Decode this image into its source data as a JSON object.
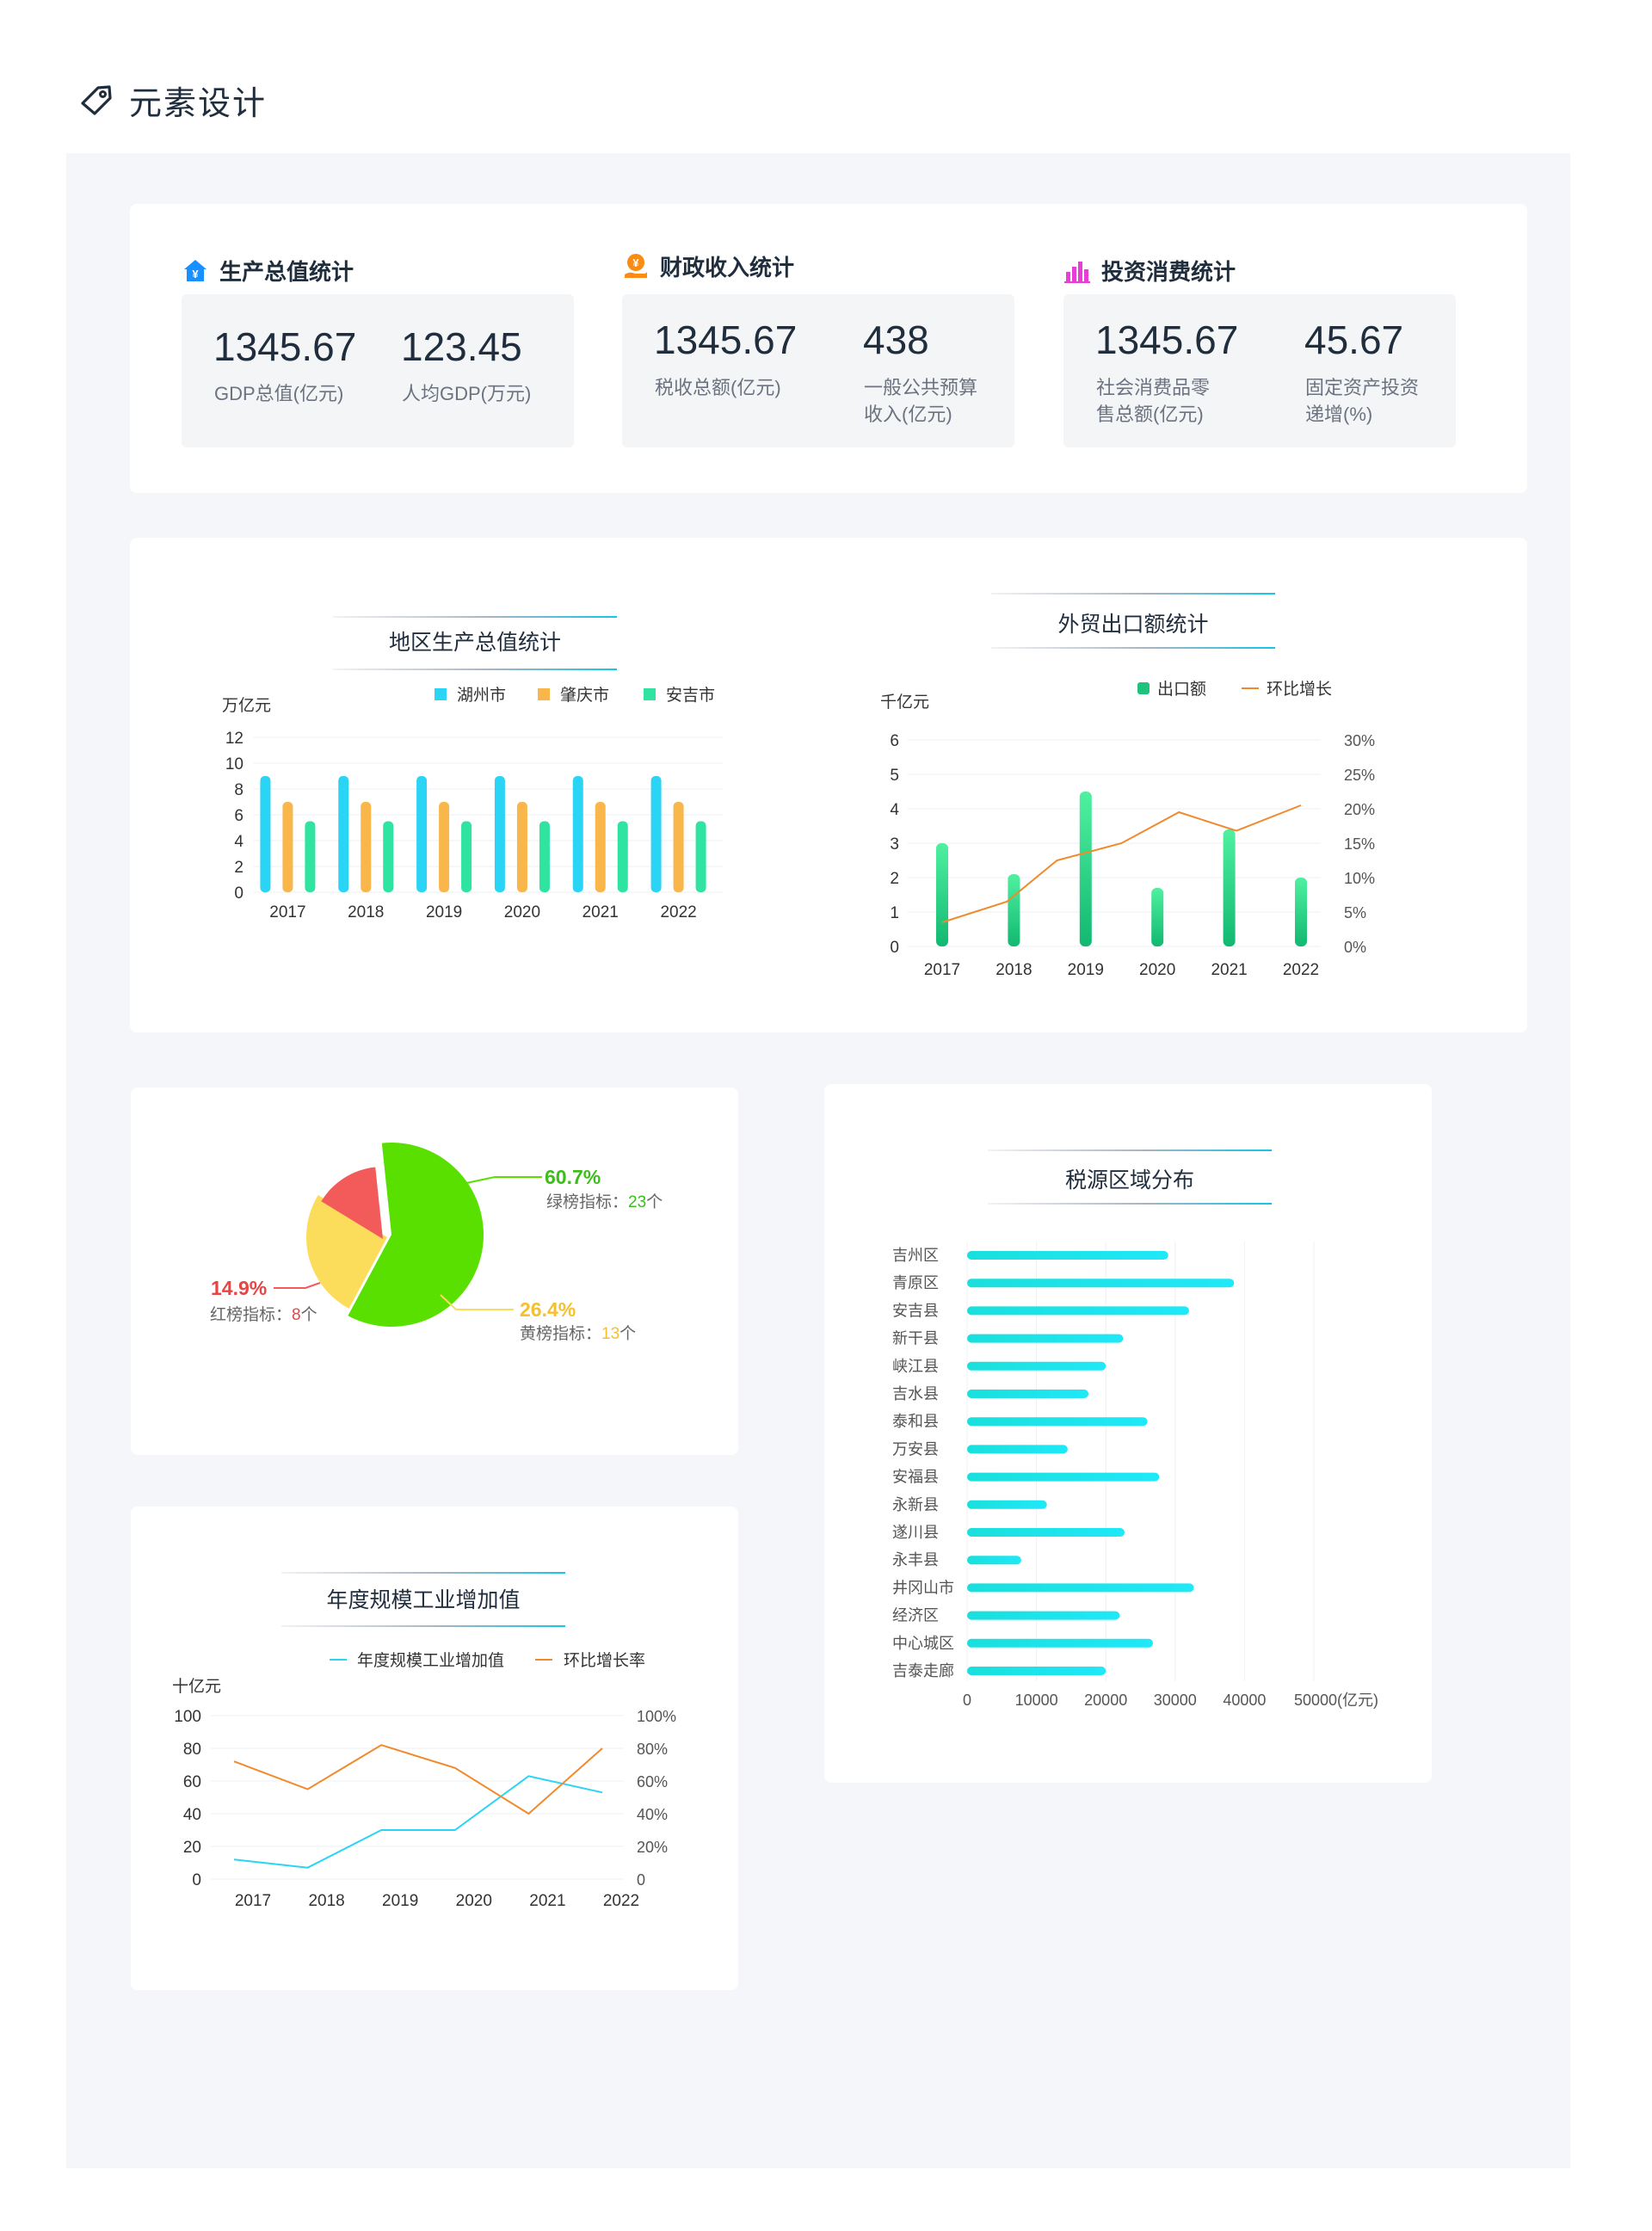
{
  "page": {
    "title": "元素设计",
    "title_icon": "tag-icon"
  },
  "stats": [
    {
      "title": "生产总值统计",
      "icon": "house-yen-icon",
      "icon_color": "#1890ff",
      "items": [
        {
          "value": "1345.67",
          "label": "GDP总值(亿元)"
        },
        {
          "value": "123.45",
          "label": "人均GDP(万元)"
        }
      ]
    },
    {
      "title": "财政收入统计",
      "icon": "yen-coin-hand-icon",
      "icon_color": "#fa8c16",
      "items": [
        {
          "value": "1345.67",
          "label": "税收总额(亿元)"
        },
        {
          "value": "438",
          "label": "一般公共预算收入(亿元)",
          "label_lines": [
            "一般公共预算",
            "收入(亿元)"
          ]
        }
      ]
    },
    {
      "title": "投资消费统计",
      "icon": "bar-chart-icon",
      "icon_color": "#e83ed8",
      "items": [
        {
          "value": "1345.67",
          "label": "社会消费品零售总额(亿元)",
          "label_lines": [
            "社会消费品零",
            "售总额(亿元)"
          ]
        },
        {
          "value": "45.67",
          "label": "固定资产投资递增(%)",
          "label_lines": [
            "固定资产投资",
            "递增(%)"
          ]
        }
      ]
    }
  ],
  "chart_data": [
    {
      "id": "regional-gdp",
      "type": "bar",
      "title": "地区生产总值统计",
      "ylabel": "万亿元",
      "ylim": [
        0,
        12
      ],
      "yticks": [
        0,
        2,
        4,
        6,
        8,
        10,
        12
      ],
      "categories": [
        "2017",
        "2018",
        "2019",
        "2020",
        "2021",
        "2022"
      ],
      "series": [
        {
          "name": "湖州市",
          "color": "#2ad4f4",
          "values": [
            9,
            9,
            9,
            9,
            9,
            9
          ]
        },
        {
          "name": "肇庆市",
          "color": "#f9b64a",
          "values": [
            7,
            7,
            7,
            7,
            7,
            7
          ]
        },
        {
          "name": "安吉市",
          "color": "#2ee4a0",
          "values": [
            5.5,
            5.5,
            5.5,
            5.5,
            5.5,
            5.5
          ]
        }
      ],
      "legend": "top",
      "grid": true
    },
    {
      "id": "foreign-trade",
      "type": "bar+line",
      "title": "外贸出口额统计",
      "ylabel": "千亿元",
      "ylim": [
        0,
        6
      ],
      "yticks": [
        0,
        1,
        2,
        3,
        4,
        5,
        6
      ],
      "y2lim": [
        0,
        30
      ],
      "y2ticks": [
        "0%",
        "5%",
        "10%",
        "15%",
        "20%",
        "25%",
        "30%"
      ],
      "categories": [
        "2017",
        "2018",
        "2019",
        "2020",
        "2021",
        "2022"
      ],
      "series": [
        {
          "name": "出口额",
          "type": "bar",
          "color": "#1fc27a",
          "values": [
            3,
            2.1,
            4.5,
            1.7,
            3.4,
            2
          ]
        },
        {
          "name": "环比增长",
          "type": "line",
          "axis": "right",
          "color": "#f08a2c",
          "x": [
            2017,
            2017.9,
            2018.6,
            2019.5,
            2020.3,
            2021.1,
            2022
          ],
          "values": [
            3.5,
            6.5,
            12.5,
            15,
            19.5,
            16.8,
            20.5
          ]
        }
      ],
      "legend": "top-right",
      "grid": true
    },
    {
      "id": "indicator-pie",
      "type": "pie",
      "slices": [
        {
          "name": "绿榜指标",
          "percent_label": "60.7%",
          "value": 60.7,
          "count": "23",
          "unit": "个",
          "color": "#5ae000",
          "text_color": "#3dbd1c"
        },
        {
          "name": "黄榜指标",
          "percent_label": "26.4%",
          "value": 26.4,
          "count": "13",
          "unit": "个",
          "color": "#fbdc5b",
          "text_color": "#f5c02e"
        },
        {
          "name": "红榜指标",
          "percent_label": "14.9%",
          "value": 14.9,
          "count": "8",
          "unit": "个",
          "color": "#f35b5b",
          "text_color": "#e84444"
        }
      ]
    },
    {
      "id": "industry-value",
      "type": "line",
      "title": "年度规模工业增加值",
      "ylabel": "十亿元",
      "ylim": [
        0,
        100
      ],
      "yticks": [
        0,
        20,
        40,
        60,
        80,
        100
      ],
      "y2ticks": [
        "0",
        "20%",
        "40%",
        "60%",
        "80%",
        "100%"
      ],
      "categories": [
        "2017",
        "2018",
        "2019",
        "2020",
        "2021",
        "2022"
      ],
      "series": [
        {
          "name": "年度规模工业增加值",
          "color": "#2ad4f4",
          "x": [
            2017,
            2018,
            2019,
            2020,
            2021,
            2022
          ],
          "values": [
            12,
            7,
            30,
            30,
            63,
            53
          ]
        },
        {
          "name": "环比增长率",
          "color": "#f08a2c",
          "axis": "right",
          "x": [
            2017,
            2018,
            2019,
            2020,
            2021,
            2022
          ],
          "values": [
            72,
            55,
            82,
            68,
            40,
            80
          ]
        }
      ],
      "legend": "top",
      "grid": true
    },
    {
      "id": "tax-source",
      "type": "bar",
      "orientation": "horizontal",
      "title": "税源区域分布",
      "xlim": [
        0,
        50000
      ],
      "xticks": [
        "0",
        "10000",
        "20000",
        "30000",
        "40000",
        "50000(亿元)"
      ],
      "categories": [
        "吉州区",
        "青原区",
        "安吉县",
        "新干县",
        "峡江县",
        "吉水县",
        "泰和县",
        "万安县",
        "安福县",
        "永新县",
        "遂川县",
        "永丰县",
        "井冈山市",
        "经济区",
        "中心城区",
        "吉泰走廊"
      ],
      "values": [
        29000,
        38500,
        32000,
        22500,
        20000,
        17500,
        26000,
        14500,
        27700,
        11500,
        22700,
        7800,
        32700,
        22000,
        26800,
        20000
      ],
      "color": "#19e3e6",
      "grid": true
    }
  ]
}
